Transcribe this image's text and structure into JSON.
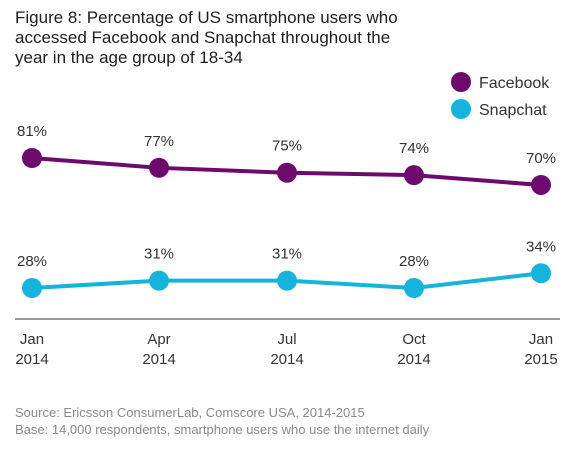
{
  "chart_data": {
    "type": "line",
    "title_lines": [
      "Figure 8: Percentage of US smartphone users who",
      "accessed Facebook and Snapchat throughout the",
      "year in the age group of 18-34"
    ],
    "categories": [
      [
        "Jan",
        "2014"
      ],
      [
        "Apr",
        "2014"
      ],
      [
        "Jul",
        "2014"
      ],
      [
        "Oct",
        "2014"
      ],
      [
        "Jan",
        "2015"
      ]
    ],
    "series": [
      {
        "name": "Facebook",
        "color": "#6e0a6e",
        "values": [
          81,
          77,
          75,
          74,
          70
        ],
        "labels": [
          "81%",
          "77%",
          "75%",
          "74%",
          "70%"
        ]
      },
      {
        "name": "Snapchat",
        "color": "#14b4dc",
        "values": [
          28,
          31,
          31,
          28,
          34
        ],
        "labels": [
          "28%",
          "31%",
          "31%",
          "28%",
          "34%"
        ]
      }
    ],
    "legend_position": "top-right",
    "grid": false,
    "axis_color": "#999999",
    "footer": [
      "Source: Ericsson ConsumerLab, Comscore USA, 2014-2015",
      "Base: 14,000 respondents, smartphone users who use the internet daily"
    ]
  }
}
